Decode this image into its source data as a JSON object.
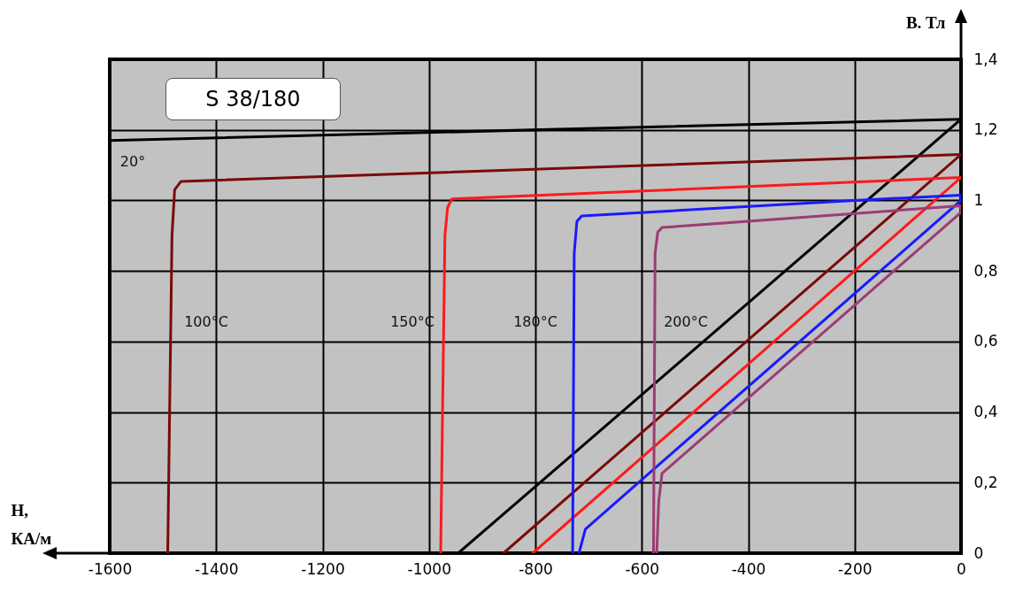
{
  "chart_data": {
    "type": "line",
    "xlabel": "Н, КА/м",
    "ylabel": "В. Тл",
    "annotations": [
      "S 38/180",
      "20°",
      "100°C",
      "150°C",
      "180°C",
      "200°C"
    ],
    "series": [
      {
        "color": "#000000",
        "x": [
          -1600,
          0,
          -945
        ],
        "values": [
          1.17,
          1.23,
          0
        ]
      },
      {
        "color": "#7b0a0a",
        "x": [
          -1491,
          -1483,
          -1478,
          -1466,
          0,
          -860
        ],
        "values": [
          0,
          0.9,
          1.03,
          1.054,
          1.13,
          0
        ]
      },
      {
        "color": "#ff1a1a",
        "x": [
          -978,
          -970,
          -965,
          -957,
          0,
          -805
        ],
        "values": [
          0,
          0.9,
          0.98,
          1.004,
          1.065,
          0
        ]
      },
      {
        "color": "#1a1aff",
        "x": [
          -730,
          -727,
          -722,
          -713,
          -200,
          0,
          0,
          -579,
          -706,
          -718
        ],
        "values": [
          0,
          0.85,
          0.94,
          0.956,
          1.0,
          1.015,
          1.0,
          0.236,
          0.068,
          0
        ]
      },
      {
        "color": "#9c3c74",
        "x": [
          -578,
          -575,
          -570,
          -562,
          0,
          0,
          -562,
          -568,
          -572
        ],
        "values": [
          0,
          0.85,
          0.91,
          0.923,
          0.985,
          0.966,
          0.226,
          0.15,
          0
        ]
      }
    ],
    "xlim": [
      -1600,
      0
    ],
    "ylim": [
      0,
      1.4
    ],
    "xticks": [
      -1600,
      -1400,
      -1200,
      -1000,
      -800,
      -600,
      -400,
      -200,
      0
    ],
    "yticks": [
      0,
      {
        "value": 0.2,
        "label": "0,2"
      },
      {
        "value": 0.4,
        "label": "0,4"
      },
      {
        "value": 0.6,
        "label": "0,6"
      },
      {
        "value": 0.8,
        "label": "0,8"
      },
      1,
      {
        "value": 1.2,
        "label": "1,2"
      },
      {
        "value": 1.4,
        "label": "1,4"
      }
    ],
    "grid": true
  }
}
